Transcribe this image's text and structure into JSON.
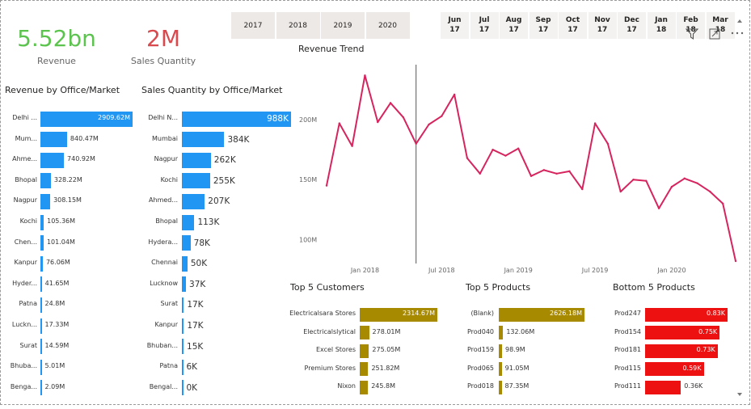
{
  "kpis": {
    "revenue": {
      "value": "5.52bn",
      "label": "Revenue",
      "color": "#5cc44e"
    },
    "quantity": {
      "value": "2M",
      "label": "Sales Quantity",
      "color": "#d84a4e"
    }
  },
  "year_slicer": [
    "2017",
    "2018",
    "2019",
    "2020"
  ],
  "month_slicer": [
    {
      "mon": "Jun",
      "yr": "17"
    },
    {
      "mon": "Jul",
      "yr": "17"
    },
    {
      "mon": "Aug",
      "yr": "17"
    },
    {
      "mon": "Sep",
      "yr": "17"
    },
    {
      "mon": "Oct",
      "yr": "17"
    },
    {
      "mon": "Nov",
      "yr": "17"
    },
    {
      "mon": "Dec",
      "yr": "17"
    },
    {
      "mon": "Jan",
      "yr": "18"
    },
    {
      "mon": "Feb",
      "yr": "18"
    },
    {
      "mon": "Mar",
      "yr": "18"
    }
  ],
  "colors": {
    "blue_bar": "#2196f3",
    "gold_bar": "#a88a00",
    "red_bar": "#ee1111",
    "trend_line": "#d6245e"
  },
  "revenue_by_market": {
    "title": "Revenue by Office/Market",
    "rows": [
      {
        "label": "Delhi ...",
        "value": 2909.62,
        "text": "2909.62M"
      },
      {
        "label": "Mum...",
        "value": 840.47,
        "text": "840.47M"
      },
      {
        "label": "Ahme...",
        "value": 740.92,
        "text": "740.92M"
      },
      {
        "label": "Bhopal",
        "value": 328.22,
        "text": "328.22M"
      },
      {
        "label": "Nagpur",
        "value": 308.15,
        "text": "308.15M"
      },
      {
        "label": "Kochi",
        "value": 105.36,
        "text": "105.36M"
      },
      {
        "label": "Chen...",
        "value": 101.04,
        "text": "101.04M"
      },
      {
        "label": "Kanpur",
        "value": 76.06,
        "text": "76.06M"
      },
      {
        "label": "Hyder...",
        "value": 41.65,
        "text": "41.65M"
      },
      {
        "label": "Patna",
        "value": 24.8,
        "text": "24.8M"
      },
      {
        "label": "Luckn...",
        "value": 17.33,
        "text": "17.33M"
      },
      {
        "label": "Surat",
        "value": 14.59,
        "text": "14.59M"
      },
      {
        "label": "Bhuba...",
        "value": 5.01,
        "text": "5.01M"
      },
      {
        "label": "Benga...",
        "value": 2.09,
        "text": "2.09M"
      }
    ]
  },
  "quantity_by_market": {
    "title": "Sales Quantity by Office/Market",
    "rows": [
      {
        "label": "Delhi N...",
        "value": 988,
        "text": "988K"
      },
      {
        "label": "Mumbai",
        "value": 384,
        "text": "384K"
      },
      {
        "label": "Nagpur",
        "value": 262,
        "text": "262K"
      },
      {
        "label": "Kochi",
        "value": 255,
        "text": "255K"
      },
      {
        "label": "Ahmed...",
        "value": 207,
        "text": "207K"
      },
      {
        "label": "Bhopal",
        "value": 113,
        "text": "113K"
      },
      {
        "label": "Hydera...",
        "value": 78,
        "text": "78K"
      },
      {
        "label": "Chennai",
        "value": 50,
        "text": "50K"
      },
      {
        "label": "Lucknow",
        "value": 37,
        "text": "37K"
      },
      {
        "label": "Surat",
        "value": 17,
        "text": "17K"
      },
      {
        "label": "Kanpur",
        "value": 17,
        "text": "17K"
      },
      {
        "label": "Bhuban...",
        "value": 15,
        "text": "15K"
      },
      {
        "label": "Patna",
        "value": 6,
        "text": "6K"
      },
      {
        "label": "Bengal...",
        "value": 0,
        "text": "0K"
      }
    ]
  },
  "revenue_trend": {
    "title": "Revenue Trend",
    "y_ticks": [
      {
        "v": 100,
        "t": "100M"
      },
      {
        "v": 150,
        "t": "150M"
      },
      {
        "v": 200,
        "t": "200M"
      }
    ],
    "x_ticks": [
      {
        "i": 3,
        "t": "Jan 2018"
      },
      {
        "i": 9,
        "t": "Jul 2018"
      },
      {
        "i": 15,
        "t": "Jan 2019"
      },
      {
        "i": 21,
        "t": "Jul 2019"
      },
      {
        "i": 27,
        "t": "Jan 2020"
      }
    ],
    "ylim": [
      80,
      250
    ],
    "values": [
      145,
      197,
      178,
      237,
      198,
      214,
      202,
      180,
      196,
      203,
      221,
      168,
      155,
      175,
      170,
      176,
      153,
      158,
      155,
      157,
      142,
      197,
      180,
      140,
      150,
      149,
      126,
      144,
      151,
      147,
      140,
      130,
      82
    ],
    "marker_index": 7.0
  },
  "top_customers": {
    "title": "Top 5 Customers",
    "rows": [
      {
        "label": "Electricalsara Stores",
        "value": 2314.67,
        "text": "2314.67M"
      },
      {
        "label": "Electricalslytical",
        "value": 278.01,
        "text": "278.01M"
      },
      {
        "label": "Excel Stores",
        "value": 275.05,
        "text": "275.05M"
      },
      {
        "label": "Premium Stores",
        "value": 251.82,
        "text": "251.82M"
      },
      {
        "label": "Nixon",
        "value": 245.8,
        "text": "245.8M"
      }
    ]
  },
  "top_products": {
    "title": "Top 5 Products",
    "rows": [
      {
        "label": "(Blank)",
        "value": 2626.18,
        "text": "2626.18M"
      },
      {
        "label": "Prod040",
        "value": 132.06,
        "text": "132.06M"
      },
      {
        "label": "Prod159",
        "value": 98.9,
        "text": "98.9M"
      },
      {
        "label": "Prod065",
        "value": 91.05,
        "text": "91.05M"
      },
      {
        "label": "Prod018",
        "value": 87.35,
        "text": "87.35M"
      }
    ]
  },
  "bottom_products": {
    "title": "Bottom 5 Products",
    "rows": [
      {
        "label": "Prod247",
        "value": 0.83,
        "text": "0.83K"
      },
      {
        "label": "Prod154",
        "value": 0.75,
        "text": "0.75K"
      },
      {
        "label": "Prod181",
        "value": 0.73,
        "text": "0.73K"
      },
      {
        "label": "Prod115",
        "value": 0.59,
        "text": "0.59K"
      },
      {
        "label": "Prod111",
        "value": 0.36,
        "text": "0.36K"
      }
    ]
  },
  "visual_header_icons": [
    "filter-icon",
    "focus-mode-icon",
    "more-options-icon"
  ]
}
